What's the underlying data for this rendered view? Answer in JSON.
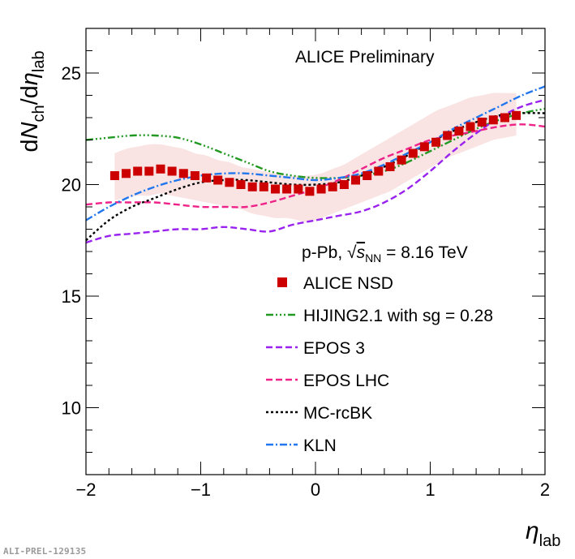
{
  "chart_data": {
    "type": "line",
    "title": "ALICE Preliminary",
    "ylabel": "dN_ch/dη_lab",
    "xlabel": "η_lab",
    "xlim": [
      -2,
      2
    ],
    "ylim": [
      7,
      27
    ],
    "x_ticks": [
      "−2",
      "−1",
      "0",
      "1",
      "2"
    ],
    "y_ticks": [
      "10",
      "15",
      "20",
      "25"
    ],
    "y_tick_values": [
      10,
      15,
      20,
      25
    ],
    "x_tick_values": [
      -2,
      -1,
      0,
      1,
      2
    ],
    "system_label": {
      "prefix": "p-Pb, ",
      "sqrt_sym": "s",
      "sub": "NN",
      "value": " = 8.16 TeV"
    },
    "data_series": {
      "name": "ALICE NSD",
      "color": "#cc0000",
      "x": [
        -1.75,
        -1.65,
        -1.55,
        -1.45,
        -1.35,
        -1.25,
        -1.15,
        -1.05,
        -0.95,
        -0.85,
        -0.75,
        -0.65,
        -0.55,
        -0.45,
        -0.35,
        -0.25,
        -0.15,
        -0.05,
        0.05,
        0.15,
        0.25,
        0.35,
        0.45,
        0.55,
        0.65,
        0.75,
        0.85,
        0.95,
        1.05,
        1.15,
        1.25,
        1.35,
        1.45,
        1.55,
        1.65,
        1.75
      ],
      "y": [
        20.4,
        20.5,
        20.6,
        20.6,
        20.7,
        20.6,
        20.5,
        20.4,
        20.3,
        20.2,
        20.1,
        20.0,
        19.9,
        19.9,
        19.8,
        19.8,
        19.8,
        19.7,
        19.8,
        19.9,
        20.0,
        20.2,
        20.4,
        20.6,
        20.8,
        21.1,
        21.4,
        21.7,
        21.9,
        22.2,
        22.4,
        22.6,
        22.8,
        22.9,
        23.0,
        23.1
      ],
      "band_upper": [
        21.4,
        21.6,
        21.7,
        21.8,
        21.8,
        21.7,
        21.6,
        21.4,
        21.3,
        21.1,
        21.0,
        20.8,
        20.7,
        20.6,
        20.5,
        20.4,
        20.4,
        20.4,
        20.5,
        20.7,
        20.9,
        21.2,
        21.5,
        21.8,
        22.1,
        22.4,
        22.7,
        23.0,
        23.3,
        23.5,
        23.7,
        23.9,
        24.0,
        24.1,
        24.1,
        24.1
      ],
      "band_lower": [
        19.3,
        19.4,
        19.5,
        19.5,
        19.6,
        19.5,
        19.4,
        19.3,
        19.2,
        19.1,
        19.0,
        18.9,
        18.7,
        18.6,
        18.5,
        18.5,
        18.4,
        18.3,
        18.5,
        18.7,
        18.9,
        19.1,
        19.3,
        19.5,
        19.7,
        20.0,
        20.3,
        20.6,
        20.9,
        21.2,
        21.4,
        21.6,
        21.8,
        22.0,
        22.1,
        22.2
      ],
      "band_color": "#f4cccc"
    },
    "series": [
      {
        "name": "HIJING2.1 with sg = 0.28",
        "color": "#229922",
        "dash": "9 3 2 3 2 3 2 3",
        "x": [
          -2,
          -1.8,
          -1.6,
          -1.4,
          -1.2,
          -1.0,
          -0.8,
          -0.6,
          -0.4,
          -0.2,
          0,
          0.2,
          0.4,
          0.6,
          0.8,
          1.0,
          1.2,
          1.4,
          1.6,
          1.8,
          2.0
        ],
        "y": [
          22.0,
          22.1,
          22.2,
          22.2,
          22.1,
          21.8,
          21.4,
          21.0,
          20.6,
          20.4,
          20.3,
          20.3,
          20.4,
          20.6,
          21.0,
          21.5,
          22.0,
          22.5,
          22.9,
          23.2,
          23.4
        ]
      },
      {
        "name": "EPOS 3",
        "color": "#9922ee",
        "dash": "8 4",
        "x": [
          -2,
          -1.8,
          -1.6,
          -1.4,
          -1.2,
          -1.0,
          -0.8,
          -0.6,
          -0.4,
          -0.2,
          0,
          0.2,
          0.4,
          0.6,
          0.8,
          1.0,
          1.2,
          1.4,
          1.6,
          1.8,
          2.0
        ],
        "y": [
          17.4,
          17.7,
          17.8,
          17.9,
          18.0,
          18.0,
          18.1,
          18.0,
          17.9,
          18.2,
          18.4,
          18.6,
          18.8,
          19.2,
          19.8,
          20.6,
          21.5,
          22.3,
          23.0,
          23.5,
          23.8
        ]
      },
      {
        "name": "EPOS LHC",
        "color": "#ee2288",
        "dash": "8 4",
        "x": [
          -2,
          -1.8,
          -1.6,
          -1.4,
          -1.2,
          -1.0,
          -0.8,
          -0.6,
          -0.4,
          -0.2,
          0,
          0.2,
          0.4,
          0.6,
          0.8,
          1.0,
          1.2,
          1.4,
          1.6,
          1.8,
          2.0
        ],
        "y": [
          19.1,
          19.2,
          19.2,
          19.2,
          19.1,
          19.0,
          19.0,
          19.0,
          19.2,
          19.5,
          19.8,
          20.2,
          20.7,
          21.2,
          21.6,
          22.0,
          22.2,
          22.4,
          22.6,
          22.7,
          22.6
        ]
      },
      {
        "name": "MC-rcBK",
        "color": "#000000",
        "dash": "3 3",
        "x": [
          -2,
          -1.8,
          -1.6,
          -1.4,
          -1.2,
          -1.0,
          -0.8,
          -0.6,
          -0.4,
          -0.2,
          0,
          0.2,
          0.4,
          0.6,
          0.8,
          1.0,
          1.2,
          1.4,
          1.6,
          1.8,
          2.0
        ],
        "y": [
          17.5,
          18.4,
          19.0,
          19.4,
          19.8,
          20.1,
          20.2,
          20.2,
          20.1,
          20.0,
          20.0,
          20.1,
          20.4,
          20.8,
          21.3,
          21.9,
          22.4,
          22.8,
          23.1,
          23.2,
          23.2
        ]
      },
      {
        "name": "KLN",
        "color": "#2277ee",
        "dash": "9 3 2 3",
        "x": [
          -2,
          -1.8,
          -1.6,
          -1.4,
          -1.2,
          -1.0,
          -0.8,
          -0.6,
          -0.4,
          -0.2,
          0,
          0.2,
          0.4,
          0.6,
          0.8,
          1.0,
          1.2,
          1.4,
          1.6,
          1.8,
          2.0
        ],
        "y": [
          18.4,
          19.0,
          19.5,
          19.9,
          20.2,
          20.4,
          20.5,
          20.5,
          20.4,
          20.3,
          20.2,
          20.3,
          20.5,
          20.9,
          21.4,
          21.9,
          22.5,
          23.0,
          23.5,
          24.0,
          24.4
        ]
      }
    ],
    "legend": {
      "placement": "right-center",
      "entries": [
        {
          "label": "ALICE NSD",
          "symbol": "marker",
          "color": "#cc0000"
        },
        {
          "label": "HIJING2.1 with sg = 0.28",
          "symbol": "line",
          "color": "#229922",
          "dash": "9 3 2 3 2 3 2 3"
        },
        {
          "label": "EPOS 3",
          "symbol": "line",
          "color": "#9922ee",
          "dash": "8 4"
        },
        {
          "label": "EPOS LHC",
          "symbol": "line",
          "color": "#ee2288",
          "dash": "8 4"
        },
        {
          "label": "MC-rcBK",
          "symbol": "line",
          "color": "#000000",
          "dash": "3 3"
        },
        {
          "label": "KLN",
          "symbol": "line",
          "color": "#2277ee",
          "dash": "9 3 2 3"
        }
      ]
    }
  },
  "footer": {
    "watermark": "ALI-PREL-129135"
  }
}
